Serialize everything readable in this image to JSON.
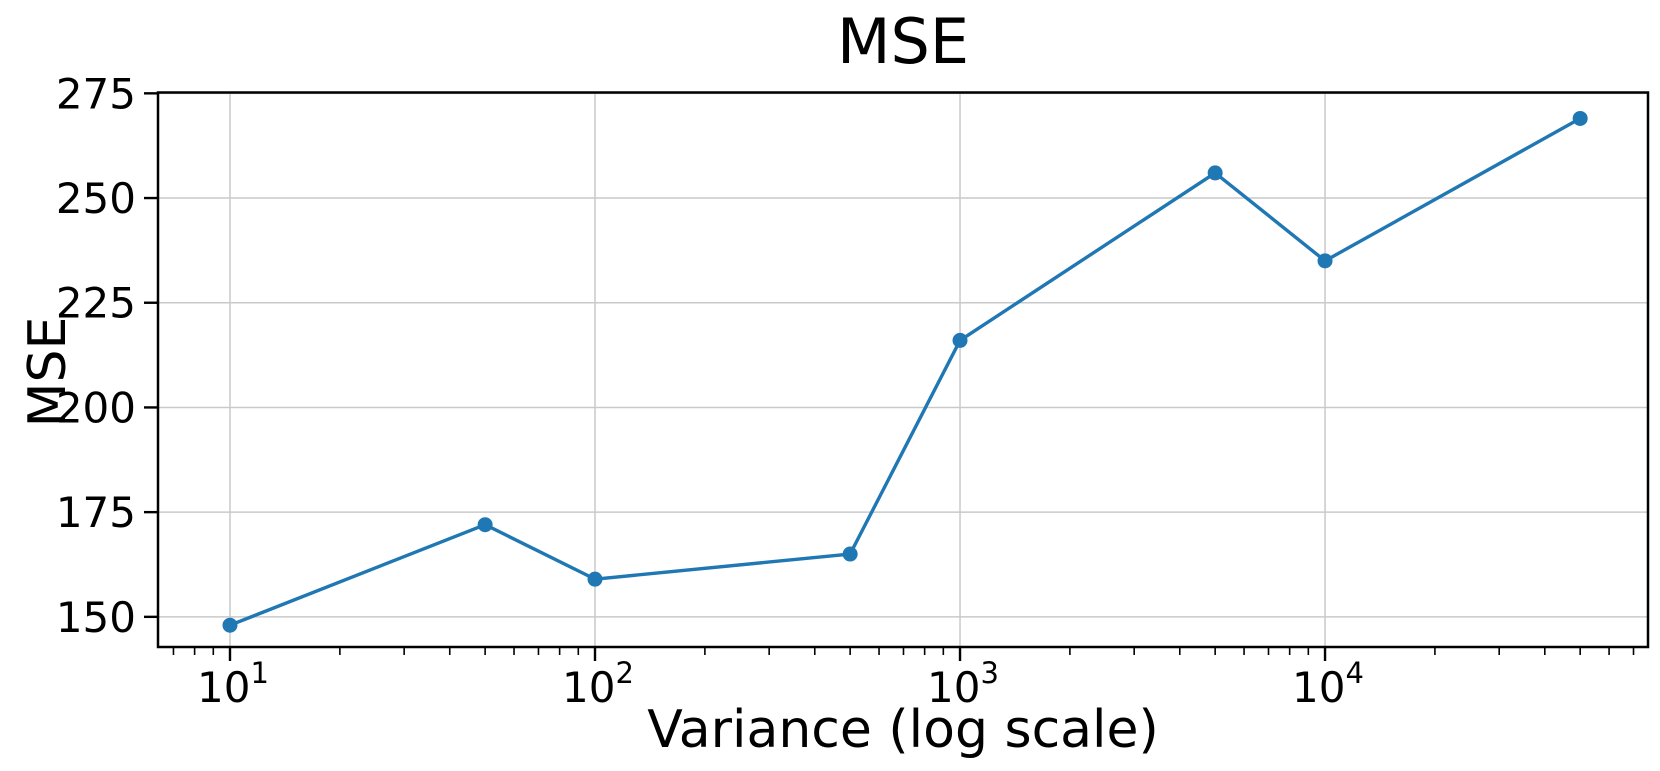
{
  "figure": {
    "background": "#ffffff"
  },
  "chart_data": {
    "type": "line",
    "title": "MSE",
    "xlabel": "Variance (log scale)",
    "ylabel": "MSE",
    "x_scale": "log",
    "y_scale": "linear",
    "x": [
      10,
      50,
      100,
      500,
      1000,
      5000,
      10000,
      50000
    ],
    "y": [
      148,
      172,
      159,
      165,
      216,
      256,
      235,
      269
    ],
    "series": [
      {
        "name": "MSE",
        "values": [
          148,
          172,
          159,
          165,
          216,
          256,
          235,
          269
        ]
      }
    ],
    "xlim": [
      6.35,
      76700
    ],
    "ylim": [
      142.8,
      275.2
    ],
    "x_major_ticks": [
      {
        "value": 10,
        "base": "10",
        "exp": "1"
      },
      {
        "value": 100,
        "base": "10",
        "exp": "2"
      },
      {
        "value": 1000,
        "base": "10",
        "exp": "3"
      },
      {
        "value": 10000,
        "base": "10",
        "exp": "4"
      }
    ],
    "y_ticks": [
      {
        "value": 150,
        "label": "150"
      },
      {
        "value": 175,
        "label": "175"
      },
      {
        "value": 200,
        "label": "200"
      },
      {
        "value": 225,
        "label": "225"
      },
      {
        "value": 250,
        "label": "250"
      },
      {
        "value": 275,
        "label": "275"
      }
    ],
    "grid": true,
    "legend": "none",
    "line_color": "#1f77b4",
    "marker": "circle",
    "marker_radius": 7.5,
    "line_width": 3.4,
    "grid_color": "#c9c9c9",
    "spine_color": "#000000",
    "tick_color": "#000000",
    "text_color": "#000000"
  }
}
